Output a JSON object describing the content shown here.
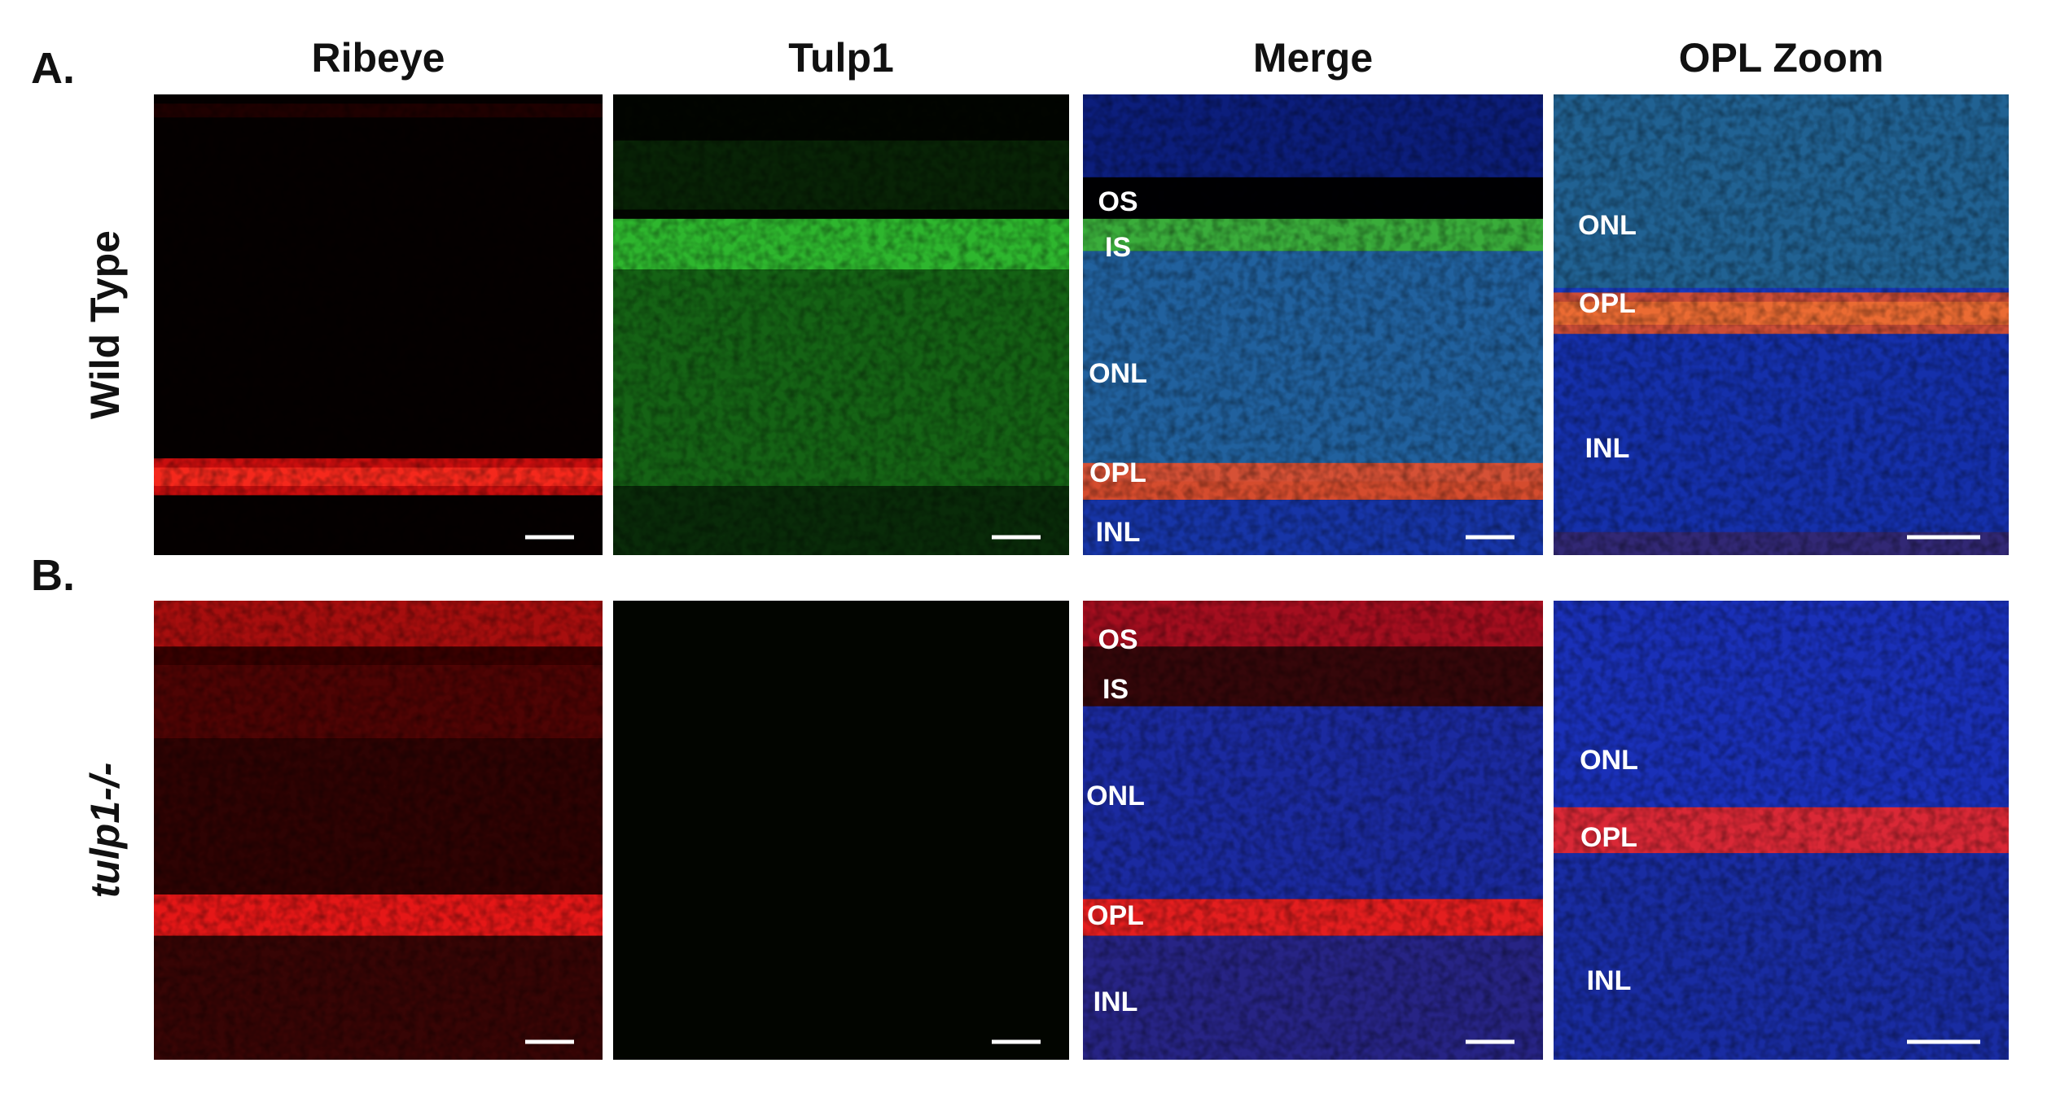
{
  "column_titles": [
    "Ribeye",
    "Tulp1",
    "Merge",
    "OPL Zoom"
  ],
  "rows": [
    {
      "letter": "A.",
      "label": "Wild Type",
      "merge_labels": [
        "OS",
        "IS",
        "ONL",
        "OPL",
        "INL"
      ],
      "zoom_labels": [
        "ONL",
        "OPL",
        "INL"
      ]
    },
    {
      "letter": "B.",
      "label": "tulp1-/-",
      "merge_labels": [
        "OS",
        "IS",
        "ONL",
        "OPL",
        "INL"
      ],
      "zoom_labels": [
        "ONL",
        "OPL",
        "INL"
      ]
    }
  ]
}
